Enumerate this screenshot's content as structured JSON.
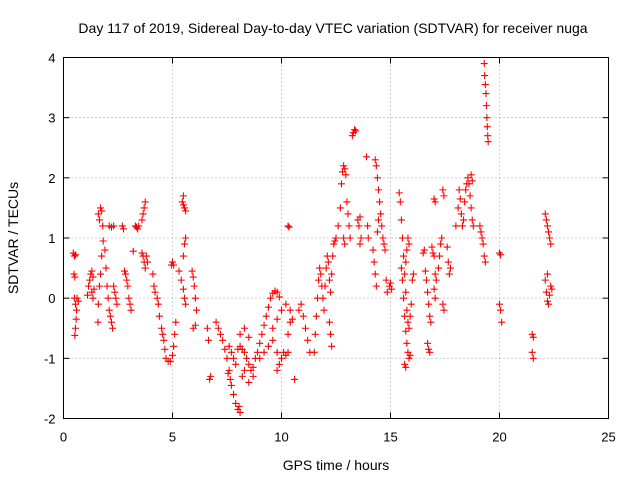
{
  "chart_data": {
    "type": "scatter",
    "title": "Day 117 of 2019, Sidereal Day-to-day VTEC variation (SDTVAR) for receiver nuga",
    "xlabel": "GPS time / hours",
    "ylabel": "SDTVAR / TECUs",
    "xlim": [
      0,
      25
    ],
    "ylim": [
      -2,
      4
    ],
    "xticks": [
      0,
      5,
      10,
      15,
      20,
      25
    ],
    "yticks": [
      -2,
      -1,
      0,
      1,
      2,
      3,
      4
    ],
    "grid": true,
    "marker": "+",
    "color": "#ff0000",
    "points": [
      [
        0.45,
        0.75
      ],
      [
        0.5,
        0.7
      ],
      [
        0.55,
        0.72
      ],
      [
        0.48,
        0.4
      ],
      [
        0.52,
        0.35
      ],
      [
        0.5,
        0.0
      ],
      [
        0.55,
        -0.1
      ],
      [
        0.6,
        -0.2
      ],
      [
        0.58,
        -0.35
      ],
      [
        0.55,
        -0.5
      ],
      [
        0.52,
        -0.62
      ],
      [
        0.62,
        0.0
      ],
      [
        0.68,
        -0.05
      ],
      [
        1.1,
        0.05
      ],
      [
        1.15,
        0.2
      ],
      [
        1.2,
        0.3
      ],
      [
        1.25,
        0.4
      ],
      [
        1.3,
        0.45
      ],
      [
        1.35,
        0.35
      ],
      [
        1.4,
        0.15
      ],
      [
        1.35,
        0.0
      ],
      [
        1.3,
        0.1
      ],
      [
        1.6,
        1.4
      ],
      [
        1.65,
        1.3
      ],
      [
        1.7,
        1.5
      ],
      [
        1.75,
        1.45
      ],
      [
        1.8,
        1.2
      ],
      [
        1.82,
        0.95
      ],
      [
        1.75,
        0.7
      ],
      [
        1.7,
        0.4
      ],
      [
        1.65,
        0.2
      ],
      [
        1.6,
        -0.1
      ],
      [
        1.58,
        -0.4
      ],
      [
        1.9,
        0.8
      ],
      [
        1.95,
        0.5
      ],
      [
        2.0,
        0.2
      ],
      [
        2.05,
        0.0
      ],
      [
        2.1,
        -0.2
      ],
      [
        2.15,
        -0.3
      ],
      [
        2.2,
        -0.4
      ],
      [
        2.25,
        -0.5
      ],
      [
        2.1,
        1.2
      ],
      [
        2.2,
        1.18
      ],
      [
        2.3,
        1.2
      ],
      [
        2.3,
        0.2
      ],
      [
        2.35,
        0.1
      ],
      [
        2.4,
        0.0
      ],
      [
        2.45,
        -0.1
      ],
      [
        2.7,
        1.2
      ],
      [
        2.75,
        1.15
      ],
      [
        2.8,
        0.45
      ],
      [
        2.85,
        0.4
      ],
      [
        2.9,
        0.3
      ],
      [
        2.95,
        0.2
      ],
      [
        3.0,
        0.0
      ],
      [
        3.05,
        -0.1
      ],
      [
        3.1,
        -0.2
      ],
      [
        3.3,
        1.2
      ],
      [
        3.35,
        1.18
      ],
      [
        3.4,
        1.15
      ],
      [
        3.45,
        1.2
      ],
      [
        3.2,
        0.78
      ],
      [
        3.6,
        0.75
      ],
      [
        3.65,
        0.7
      ],
      [
        3.7,
        0.6
      ],
      [
        3.75,
        0.5
      ],
      [
        3.8,
        0.7
      ],
      [
        3.85,
        0.6
      ],
      [
        3.6,
        1.3
      ],
      [
        3.65,
        1.4
      ],
      [
        3.7,
        1.5
      ],
      [
        3.75,
        1.6
      ],
      [
        4.1,
        0.4
      ],
      [
        4.15,
        0.2
      ],
      [
        4.2,
        0.1
      ],
      [
        4.3,
        0.0
      ],
      [
        4.35,
        -0.1
      ],
      [
        4.4,
        -0.3
      ],
      [
        4.5,
        -0.5
      ],
      [
        4.55,
        -0.6
      ],
      [
        4.6,
        -0.7
      ],
      [
        4.65,
        -0.85
      ],
      [
        4.7,
        -1.0
      ],
      [
        4.8,
        -1.05
      ],
      [
        4.9,
        -1.05
      ],
      [
        5.0,
        -0.95
      ],
      [
        5.05,
        -0.8
      ],
      [
        5.1,
        -0.6
      ],
      [
        5.15,
        -0.4
      ],
      [
        4.95,
        0.55
      ],
      [
        5.0,
        0.6
      ],
      [
        5.05,
        0.55
      ],
      [
        5.3,
        0.45
      ],
      [
        5.4,
        0.3
      ],
      [
        5.5,
        0.15
      ],
      [
        5.55,
        0.0
      ],
      [
        5.6,
        -0.1
      ],
      [
        5.5,
        0.7
      ],
      [
        5.55,
        0.9
      ],
      [
        5.6,
        1.0
      ],
      [
        5.45,
        1.6
      ],
      [
        5.5,
        1.7
      ],
      [
        5.55,
        1.5
      ],
      [
        5.6,
        1.45
      ],
      [
        5.5,
        1.55
      ],
      [
        5.9,
        0.45
      ],
      [
        5.95,
        0.35
      ],
      [
        6.0,
        0.2
      ],
      [
        6.05,
        0.0
      ],
      [
        6.1,
        -0.2
      ],
      [
        6.05,
        -0.45
      ],
      [
        5.95,
        -0.5
      ],
      [
        6.6,
        -0.5
      ],
      [
        6.65,
        -0.7
      ],
      [
        6.7,
        -1.35
      ],
      [
        6.75,
        -1.3
      ],
      [
        7.0,
        -0.4
      ],
      [
        7.1,
        -0.5
      ],
      [
        7.2,
        -0.6
      ],
      [
        7.3,
        -0.7
      ],
      [
        7.4,
        -0.85
      ],
      [
        7.5,
        -1.0
      ],
      [
        7.6,
        -1.2
      ],
      [
        7.65,
        -1.35
      ],
      [
        7.55,
        -1.25
      ],
      [
        7.7,
        -1.45
      ],
      [
        7.8,
        -1.6
      ],
      [
        7.9,
        -1.75
      ],
      [
        8.0,
        -1.85
      ],
      [
        8.1,
        -1.9
      ],
      [
        8.05,
        -1.8
      ],
      [
        7.6,
        -0.8
      ],
      [
        7.7,
        -0.9
      ],
      [
        7.8,
        -1.0
      ],
      [
        7.9,
        -1.1
      ],
      [
        8.0,
        -0.85
      ],
      [
        8.1,
        -0.8
      ],
      [
        8.2,
        -0.85
      ],
      [
        8.3,
        -0.9
      ],
      [
        8.4,
        -1.0
      ],
      [
        8.5,
        -1.1
      ],
      [
        8.6,
        -1.2
      ],
      [
        8.7,
        -1.15
      ],
      [
        8.8,
        -1.0
      ],
      [
        8.9,
        -0.9
      ],
      [
        9.0,
        -0.75
      ],
      [
        9.1,
        -0.6
      ],
      [
        9.2,
        -0.45
      ],
      [
        9.3,
        -0.3
      ],
      [
        9.4,
        -0.15
      ],
      [
        9.5,
        0.0
      ],
      [
        9.6,
        0.08
      ],
      [
        9.7,
        0.12
      ],
      [
        9.8,
        0.1
      ],
      [
        9.9,
        0.02
      ],
      [
        8.2,
        -1.3
      ],
      [
        8.3,
        -1.2
      ],
      [
        8.5,
        -1.4
      ],
      [
        8.7,
        -1.3
      ],
      [
        9.0,
        -1.0
      ],
      [
        9.2,
        -0.9
      ],
      [
        9.4,
        -0.8
      ],
      [
        9.6,
        -0.7
      ],
      [
        9.8,
        -0.9
      ],
      [
        10.0,
        -1.0
      ],
      [
        10.2,
        -0.95
      ],
      [
        10.3,
        -0.9
      ],
      [
        8.1,
        -0.6
      ],
      [
        8.3,
        -0.5
      ],
      [
        8.5,
        -0.65
      ],
      [
        9.6,
        -0.5
      ],
      [
        9.8,
        -0.35
      ],
      [
        10.0,
        -0.2
      ],
      [
        10.2,
        -0.1
      ],
      [
        10.4,
        -0.2
      ],
      [
        10.5,
        -0.35
      ],
      [
        9.8,
        -1.2
      ],
      [
        9.9,
        -1.1
      ],
      [
        10.1,
        -0.9
      ],
      [
        10.3,
        -0.6
      ],
      [
        10.4,
        -0.4
      ],
      [
        10.6,
        -1.35
      ],
      [
        10.3,
        1.2
      ],
      [
        10.35,
        1.18
      ],
      [
        10.8,
        -0.2
      ],
      [
        10.9,
        -0.1
      ],
      [
        11.0,
        -0.3
      ],
      [
        11.1,
        -0.5
      ],
      [
        11.2,
        -0.7
      ],
      [
        11.3,
        -0.9
      ],
      [
        11.5,
        -0.9
      ],
      [
        11.55,
        -0.6
      ],
      [
        11.6,
        -0.3
      ],
      [
        11.65,
        0.0
      ],
      [
        11.7,
        0.3
      ],
      [
        11.75,
        0.5
      ],
      [
        11.8,
        0.4
      ],
      [
        11.85,
        0.2
      ],
      [
        11.9,
        0.0
      ],
      [
        11.95,
        -0.2
      ],
      [
        12.0,
        0.2
      ],
      [
        12.05,
        0.5
      ],
      [
        12.1,
        0.7
      ],
      [
        12.15,
        0.6
      ],
      [
        12.2,
        0.3
      ],
      [
        12.25,
        0.1
      ],
      [
        12.3,
        0.4
      ],
      [
        12.35,
        0.7
      ],
      [
        12.4,
        0.9
      ],
      [
        12.2,
        -0.4
      ],
      [
        12.25,
        -0.6
      ],
      [
        12.3,
        -0.8
      ],
      [
        12.45,
        0.95
      ],
      [
        12.5,
        1.0
      ],
      [
        12.6,
        1.2
      ],
      [
        12.7,
        1.5
      ],
      [
        12.75,
        1.9
      ],
      [
        12.8,
        2.1
      ],
      [
        12.85,
        2.2
      ],
      [
        12.9,
        2.15
      ],
      [
        12.95,
        2.05
      ],
      [
        13.0,
        1.6
      ],
      [
        13.05,
        1.4
      ],
      [
        13.1,
        1.2
      ],
      [
        13.15,
        1.0
      ],
      [
        12.85,
        1.0
      ],
      [
        12.9,
        0.9
      ],
      [
        13.3,
        2.75
      ],
      [
        13.35,
        2.8
      ],
      [
        13.25,
        2.7
      ],
      [
        13.4,
        2.78
      ],
      [
        13.5,
        1.3
      ],
      [
        13.55,
        1.2
      ],
      [
        13.6,
        1.35
      ],
      [
        13.6,
        0.9
      ],
      [
        13.65,
        1.0
      ],
      [
        13.9,
        2.35
      ],
      [
        13.95,
        1.2
      ],
      [
        13.98,
        1.0
      ],
      [
        14.3,
        2.3
      ],
      [
        14.35,
        2.2
      ],
      [
        14.4,
        2.0
      ],
      [
        14.45,
        1.8
      ],
      [
        14.5,
        1.6
      ],
      [
        14.55,
        1.4
      ],
      [
        14.6,
        1.2
      ],
      [
        14.65,
        1.0
      ],
      [
        14.7,
        0.9
      ],
      [
        14.75,
        0.8
      ],
      [
        14.2,
        0.8
      ],
      [
        14.25,
        0.6
      ],
      [
        14.3,
        0.4
      ],
      [
        14.35,
        0.2
      ],
      [
        14.4,
        1.1
      ],
      [
        14.45,
        1.3
      ],
      [
        14.8,
        0.3
      ],
      [
        14.85,
        0.1
      ],
      [
        14.95,
        0.2
      ],
      [
        15.0,
        0.25
      ],
      [
        15.05,
        0.15
      ],
      [
        15.4,
        1.75
      ],
      [
        15.45,
        1.6
      ],
      [
        15.5,
        1.3
      ],
      [
        15.55,
        1.0
      ],
      [
        15.6,
        0.7
      ],
      [
        15.65,
        0.4
      ],
      [
        15.7,
        0.1
      ],
      [
        15.75,
        -0.2
      ],
      [
        15.8,
        -0.4
      ],
      [
        15.85,
        -0.5
      ],
      [
        15.9,
        -0.3
      ],
      [
        15.95,
        -0.1
      ],
      [
        15.7,
        0.6
      ],
      [
        15.75,
        0.8
      ],
      [
        15.8,
        1.0
      ],
      [
        15.85,
        0.9
      ],
      [
        15.5,
        0.5
      ],
      [
        15.55,
        0.3
      ],
      [
        15.6,
        0.0
      ],
      [
        15.65,
        -0.3
      ],
      [
        15.7,
        -0.55
      ],
      [
        15.75,
        -0.75
      ],
      [
        15.8,
        -0.9
      ],
      [
        15.85,
        -1.0
      ],
      [
        15.9,
        -0.95
      ],
      [
        15.65,
        -1.1
      ],
      [
        15.7,
        -1.15
      ],
      [
        16.0,
        0.3
      ],
      [
        16.05,
        0.4
      ],
      [
        16.5,
        0.75
      ],
      [
        16.55,
        0.8
      ],
      [
        16.6,
        0.45
      ],
      [
        16.65,
        0.3
      ],
      [
        16.7,
        0.1
      ],
      [
        16.75,
        -0.1
      ],
      [
        16.8,
        -0.3
      ],
      [
        16.85,
        -0.4
      ],
      [
        16.7,
        -0.75
      ],
      [
        16.75,
        -0.85
      ],
      [
        16.8,
        -0.9
      ],
      [
        16.9,
        0.85
      ],
      [
        16.95,
        0.75
      ],
      [
        17.0,
        0.7
      ],
      [
        17.05,
        0.4
      ],
      [
        17.1,
        0.3
      ],
      [
        17.2,
        0.5
      ],
      [
        17.25,
        0.7
      ],
      [
        17.3,
        0.9
      ],
      [
        17.35,
        1.0
      ],
      [
        17.4,
        -0.1
      ],
      [
        17.45,
        -0.2
      ],
      [
        17.0,
        1.65
      ],
      [
        17.05,
        1.6
      ],
      [
        17.0,
        0.15
      ],
      [
        17.05,
        0.0
      ],
      [
        17.4,
        1.8
      ],
      [
        17.45,
        1.7
      ],
      [
        17.6,
        0.85
      ],
      [
        17.65,
        0.6
      ],
      [
        17.7,
        0.4
      ],
      [
        17.75,
        0.5
      ],
      [
        18.0,
        1.2
      ],
      [
        18.1,
        1.5
      ],
      [
        18.15,
        1.8
      ],
      [
        18.2,
        1.65
      ],
      [
        18.25,
        1.4
      ],
      [
        18.3,
        1.2
      ],
      [
        18.35,
        1.3
      ],
      [
        18.4,
        1.6
      ],
      [
        18.45,
        1.8
      ],
      [
        18.5,
        1.9
      ],
      [
        18.55,
        2.0
      ],
      [
        18.6,
        1.9
      ],
      [
        18.65,
        1.7
      ],
      [
        18.7,
        1.5
      ],
      [
        18.75,
        1.3
      ],
      [
        18.8,
        1.2
      ],
      [
        18.7,
        2.05
      ],
      [
        18.75,
        1.95
      ],
      [
        19.1,
        1.2
      ],
      [
        19.15,
        1.1
      ],
      [
        19.2,
        1.0
      ],
      [
        19.25,
        0.9
      ],
      [
        19.3,
        0.7
      ],
      [
        19.35,
        0.6
      ],
      [
        19.3,
        3.9
      ],
      [
        19.32,
        3.7
      ],
      [
        19.35,
        3.55
      ],
      [
        19.38,
        3.4
      ],
      [
        19.4,
        3.2
      ],
      [
        19.42,
        3.0
      ],
      [
        19.44,
        2.85
      ],
      [
        19.46,
        2.7
      ],
      [
        19.48,
        2.6
      ],
      [
        20.0,
        0.75
      ],
      [
        20.05,
        0.72
      ],
      [
        20.0,
        -0.1
      ],
      [
        20.05,
        -0.2
      ],
      [
        20.1,
        -0.4
      ],
      [
        21.5,
        -0.6
      ],
      [
        21.55,
        -0.65
      ],
      [
        21.5,
        -0.9
      ],
      [
        21.55,
        -1.0
      ],
      [
        22.1,
        1.4
      ],
      [
        22.15,
        1.3
      ],
      [
        22.2,
        1.2
      ],
      [
        22.25,
        1.1
      ],
      [
        22.3,
        1.0
      ],
      [
        22.35,
        0.9
      ],
      [
        22.1,
        0.3
      ],
      [
        22.15,
        0.1
      ],
      [
        22.2,
        -0.05
      ],
      [
        22.25,
        -0.1
      ],
      [
        22.3,
        0.05
      ],
      [
        22.35,
        0.2
      ],
      [
        22.2,
        0.4
      ],
      [
        22.4,
        0.15
      ]
    ]
  }
}
